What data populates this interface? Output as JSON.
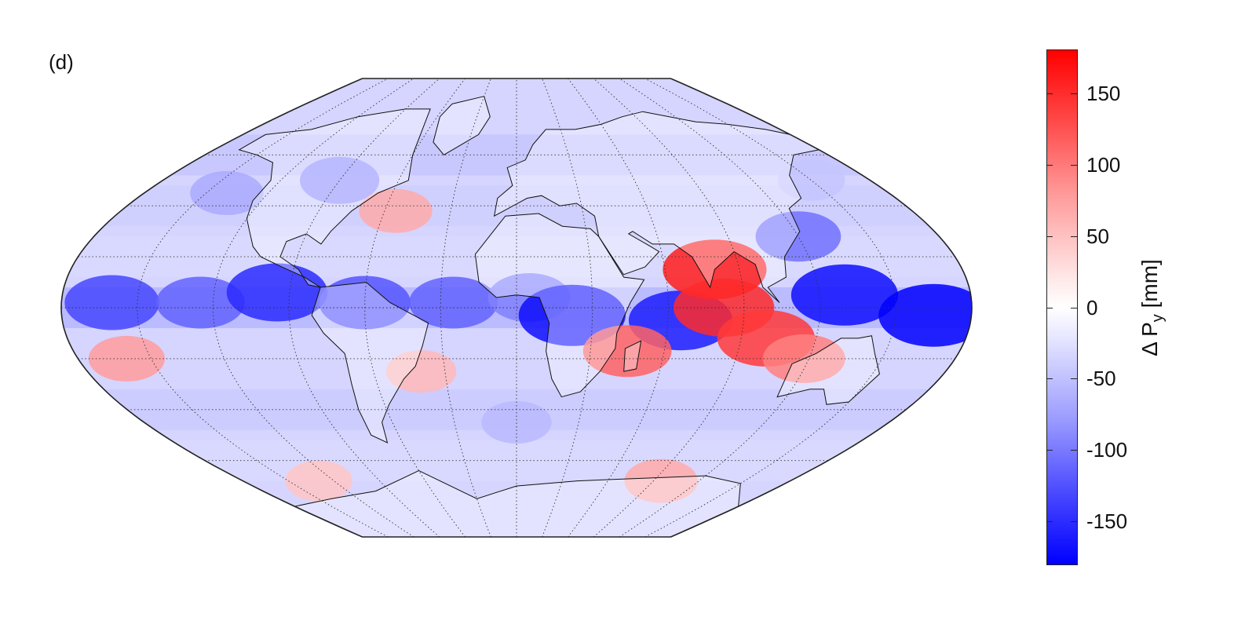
{
  "panel_label": "(d)",
  "colorbar": {
    "title_main": "Δ P",
    "title_sub": "y",
    "title_unit": "[mm]",
    "min": -180,
    "max": 180,
    "ticks": [
      "150",
      "100",
      "50",
      "0",
      "-50",
      "-100",
      "-150"
    ],
    "tick_values": [
      150,
      100,
      50,
      0,
      -50,
      -100,
      -150
    ],
    "colors": {
      "max": "#ff0000",
      "mid": "#ffffff",
      "min": "#0000ff"
    }
  },
  "map": {
    "projection": "robinson-like",
    "graticule": "dotted",
    "parallels_deg": [
      -60,
      -40,
      -20,
      0,
      20,
      40,
      60
    ],
    "meridians_deg": [
      -150,
      -120,
      -90,
      -60,
      -30,
      0,
      30,
      60,
      90,
      120,
      150
    ],
    "anomalies": [
      {
        "lon": -160,
        "lat": 2,
        "value": -130
      },
      {
        "lon": -125,
        "lat": 2,
        "value": -110
      },
      {
        "lon": -95,
        "lat": 6,
        "value": -150
      },
      {
        "lon": -60,
        "lat": 2,
        "value": -120
      },
      {
        "lon": -25,
        "lat": 2,
        "value": -110
      },
      {
        "lon": 5,
        "lat": 4,
        "value": -90
      },
      {
        "lon": 22,
        "lat": -3,
        "value": -170
      },
      {
        "lon": 65,
        "lat": -5,
        "value": -160
      },
      {
        "lon": 130,
        "lat": 5,
        "value": -170
      },
      {
        "lon": 165,
        "lat": -3,
        "value": -180
      },
      {
        "lon": 120,
        "lat": 28,
        "value": -100
      },
      {
        "lon": -90,
        "lat": 50,
        "value": -80
      },
      {
        "lon": 80,
        "lat": 15,
        "value": 160
      },
      {
        "lon": 82,
        "lat": 0,
        "value": 150
      },
      {
        "lon": 100,
        "lat": -12,
        "value": 140
      },
      {
        "lon": 118,
        "lat": -20,
        "value": 90
      },
      {
        "lon": 45,
        "lat": -17,
        "value": 110
      },
      {
        "lon": -160,
        "lat": -20,
        "value": 70
      },
      {
        "lon": -40,
        "lat": -25,
        "value": 50
      },
      {
        "lon": -55,
        "lat": 38,
        "value": 60
      },
      {
        "lon": 95,
        "lat": -68,
        "value": 60
      },
      {
        "lon": -130,
        "lat": -68,
        "value": 40
      },
      {
        "lon": 0,
        "lat": -45,
        "value": -50
      },
      {
        "lon": -140,
        "lat": 45,
        "value": -60
      },
      {
        "lon": 150,
        "lat": 50,
        "value": -40
      }
    ]
  }
}
